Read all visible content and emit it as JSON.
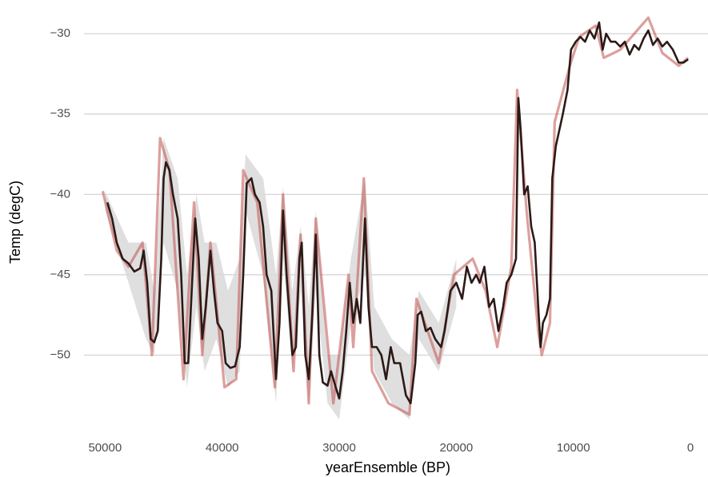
{
  "chart_data": {
    "type": "line",
    "x_label": "yearEnsemble (BP)",
    "y_label": "Temp (degC)",
    "xlim": [
      51800,
      -1500
    ],
    "ylim": [
      -55,
      -28.5
    ],
    "xticks": [
      50000,
      40000,
      30000,
      20000,
      10000,
      0
    ],
    "yticks": [
      {
        "value": -50,
        "label": "−50"
      },
      {
        "value": -45,
        "label": "−45"
      },
      {
        "value": -40,
        "label": "−40"
      },
      {
        "value": -35,
        "label": "−35"
      },
      {
        "value": -30,
        "label": "−30"
      }
    ],
    "grid": true,
    "band": {
      "color": "#d9d9d9",
      "x": [
        50000,
        48000,
        46500,
        45800,
        45000,
        43800,
        43000,
        42200,
        41500,
        40500,
        39500,
        38500,
        38000,
        36500,
        35400,
        34800,
        34000,
        33300,
        32600,
        32000,
        31000,
        30000,
        29000,
        27800,
        27000,
        25500,
        24000,
        23200,
        21500,
        20000
      ],
      "lower": [
        -41,
        -45.5,
        -49,
        -50,
        -43,
        -46,
        -52,
        -47,
        -51,
        -49,
        -52,
        -51,
        -41,
        -45,
        -53,
        -44,
        -51,
        -46,
        -53,
        -46,
        -53,
        -54,
        -48,
        -45,
        -51,
        -53,
        -54,
        -49,
        -51,
        -47
      ],
      "upper": [
        -39.8,
        -43,
        -43,
        -46,
        -36.5,
        -39,
        -45,
        -40,
        -43,
        -43,
        -46,
        -44,
        -37.5,
        -39,
        -45,
        -39.5,
        -46,
        -42,
        -47,
        -41,
        -50,
        -50,
        -44,
        -39,
        -47,
        -49,
        -50,
        -46,
        -48,
        -44
      ]
    },
    "series": [
      {
        "color": "#c0504d",
        "x": [
          50200,
          49000,
          48000,
          46800,
          46000,
          45300,
          44500,
          43300,
          42400,
          41700,
          41000,
          39800,
          38800,
          38200,
          37000,
          35500,
          34800,
          33900,
          33300,
          32600,
          32000,
          30500,
          29200,
          28800,
          27900,
          27200,
          25800,
          24000,
          23400,
          21500,
          20200,
          18600,
          17500,
          16500,
          15300,
          14800,
          14000,
          13000,
          12700,
          12000,
          11600,
          10300,
          9500,
          8100,
          7400,
          6000,
          3600,
          2400,
          1000,
          200
        ],
        "values": [
          -39.8,
          -43.5,
          -44.5,
          -43,
          -50,
          -36.5,
          -38.5,
          -51.5,
          -40.5,
          -50,
          -43,
          -52,
          -51.5,
          -38.5,
          -40.5,
          -52,
          -40,
          -51,
          -42.5,
          -53,
          -41.5,
          -53,
          -45,
          -49.5,
          -39,
          -51,
          -53,
          -53.7,
          -46.5,
          -50.5,
          -45,
          -44,
          -46,
          -49.5,
          -44.5,
          -33.5,
          -41,
          -48.5,
          -50,
          -48,
          -35.5,
          -32,
          -30.2,
          -29.5,
          -31.5,
          -31,
          -29,
          -31.2,
          -32,
          -31.5
        ]
      },
      {
        "color": "#2b1a17",
        "x": [
          49800,
          49400,
          49000,
          48500,
          48000,
          47500,
          47000,
          46700,
          46400,
          46100,
          45800,
          45500,
          45200,
          45000,
          44800,
          44500,
          44200,
          43800,
          43500,
          43200,
          42900,
          42600,
          42300,
          42000,
          41700,
          41400,
          41000,
          40700,
          40400,
          40000,
          39700,
          39300,
          38900,
          38500,
          38200,
          37900,
          37500,
          37200,
          36800,
          36500,
          36200,
          35800,
          35400,
          35100,
          34800,
          34500,
          34200,
          34000,
          33700,
          33400,
          33200,
          32900,
          32600,
          32300,
          32000,
          31700,
          31400,
          31000,
          30700,
          30300,
          30000,
          29700,
          29400,
          29100,
          28800,
          28500,
          28200,
          27800,
          27500,
          27200,
          26800,
          26400,
          26000,
          25600,
          25300,
          24800,
          24300,
          23900,
          23500,
          23300,
          23000,
          22600,
          22200,
          21800,
          21300,
          21000,
          20500,
          20000,
          19500,
          19100,
          18700,
          18300,
          18000,
          17600,
          17200,
          16800,
          16400,
          16000,
          15700,
          15300,
          14900,
          14700,
          14500,
          14200,
          13900,
          13600,
          13300,
          13000,
          12800,
          12600,
          12300,
          12000,
          11800,
          11500,
          11200,
          10900,
          10500,
          10200,
          9800,
          9400,
          9000,
          8600,
          8200,
          7800,
          7500,
          7200,
          6800,
          6400,
          6000,
          5600,
          5200,
          4800,
          4400,
          4000,
          3600,
          3200,
          2800,
          2400,
          2000,
          1500,
          1000,
          600,
          200
        ],
        "values": [
          -40.5,
          -41.5,
          -43,
          -44,
          -44.3,
          -44.8,
          -44.6,
          -43.5,
          -45.5,
          -49,
          -49.2,
          -48.5,
          -44,
          -39,
          -38,
          -38.5,
          -40,
          -41.5,
          -45,
          -50.5,
          -50.5,
          -46,
          -41.5,
          -44,
          -49,
          -47,
          -43.5,
          -46,
          -48,
          -48.5,
          -50.5,
          -50.8,
          -50.7,
          -49.5,
          -45,
          -39.3,
          -39,
          -40,
          -40.5,
          -42,
          -45,
          -46,
          -51.5,
          -48,
          -41,
          -45,
          -48,
          -50,
          -49.5,
          -44,
          -43,
          -50,
          -51.5,
          -47.5,
          -42.5,
          -50,
          -51.7,
          -51.9,
          -51,
          -52,
          -52.7,
          -51,
          -48.5,
          -45.5,
          -48,
          -46.5,
          -48,
          -41.5,
          -47,
          -49.5,
          -49.5,
          -50,
          -51.5,
          -49.5,
          -50.5,
          -50.5,
          -52.5,
          -53,
          -50.5,
          -47.5,
          -47.3,
          -48.5,
          -48.3,
          -49,
          -49.5,
          -48.5,
          -46,
          -45.5,
          -46.5,
          -44.5,
          -45.5,
          -45,
          -45.5,
          -44.5,
          -47,
          -46.5,
          -48.5,
          -47,
          -45.5,
          -45,
          -44,
          -34,
          -36,
          -40,
          -39.5,
          -42,
          -43,
          -47,
          -49.5,
          -48,
          -47.5,
          -46.5,
          -39,
          -37,
          -36,
          -35,
          -33.5,
          -31,
          -30.5,
          -30.2,
          -30.5,
          -29.8,
          -30.3,
          -29.3,
          -31,
          -30,
          -30.5,
          -30.5,
          -30.8,
          -30.5,
          -31.3,
          -30.7,
          -31,
          -30.3,
          -29.8,
          -30.7,
          -30.3,
          -30.8,
          -30.5,
          -31,
          -31.8,
          -31.8,
          -31.6
        ]
      }
    ]
  }
}
